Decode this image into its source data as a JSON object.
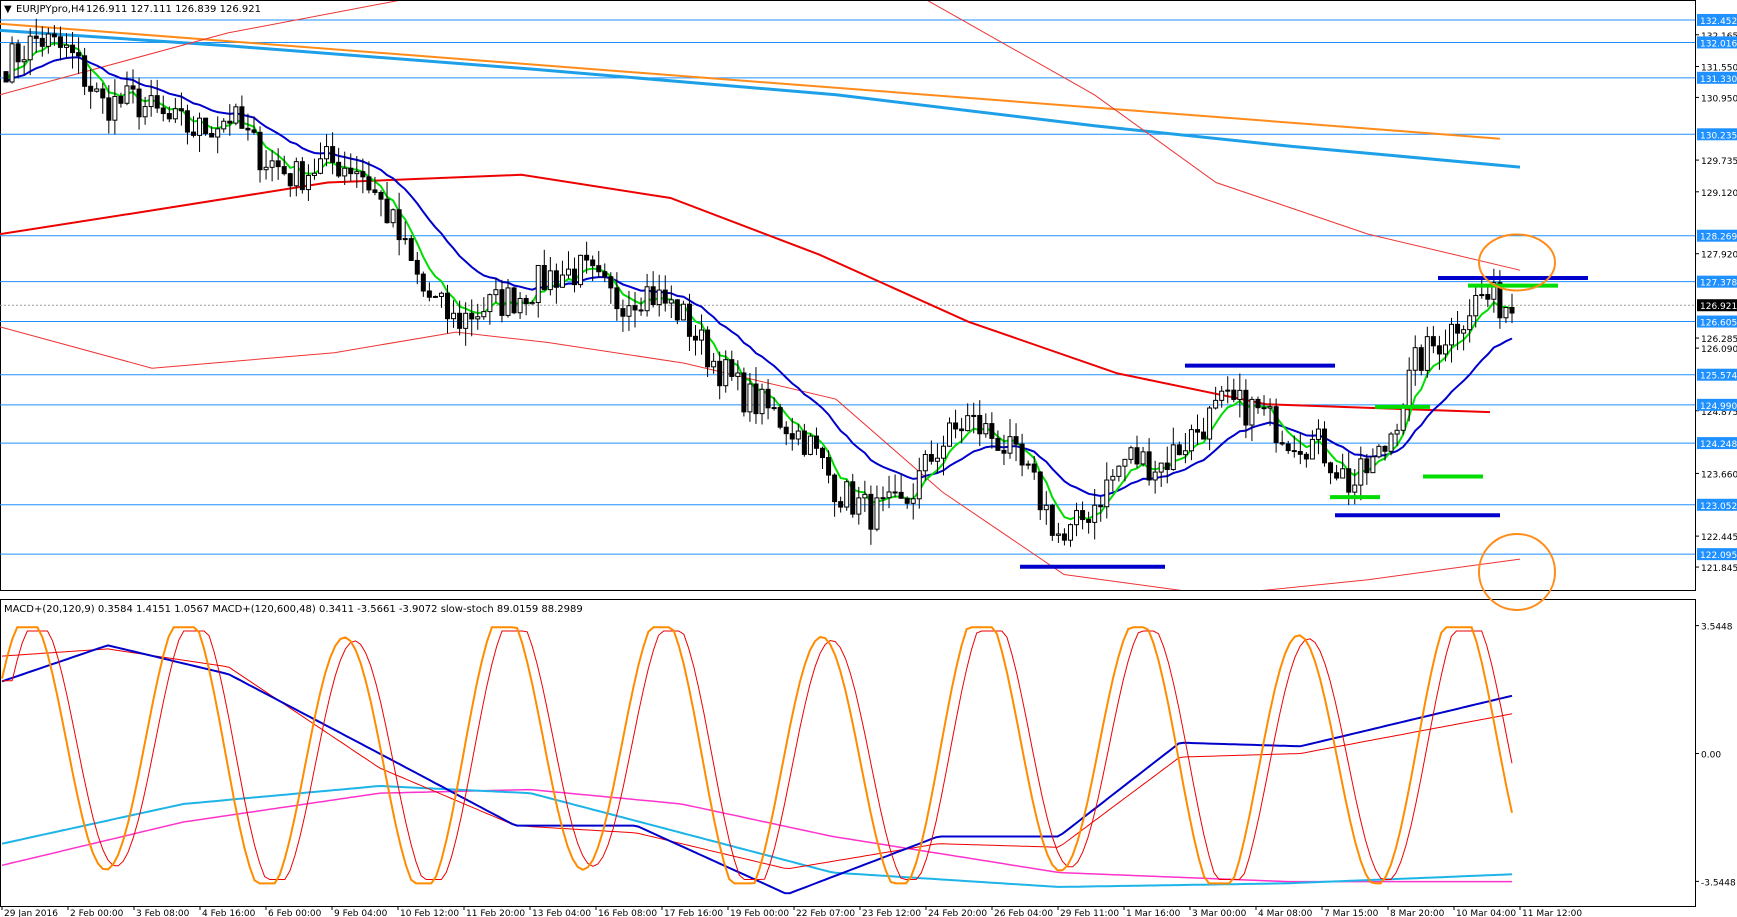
{
  "main_header": {
    "symbol": "EURJPYpro,H4",
    "ohlc": "126.911 127.111 126.839 126.921"
  },
  "sub_header": {
    "text": "MACD+(20,120,9) 0.3584 1.4151 1.0567   MACD+(120,600,48) 0.3411 -3.5661 -3.9072   slow-stoch 89.0159 88.2989"
  },
  "colors": {
    "hline": "#1e90ff",
    "badge": "#1e90ff",
    "ema_fast": "#00dd00",
    "ema_mid": "#0000cc",
    "ema_slow": "#ee0000",
    "envelope": "#ee3333",
    "ma_cyan": "#1ea0e8",
    "ma_orange": "#ff8c1a",
    "stoch_k": "#ff8c00",
    "stoch_d": "#ee0000",
    "macd1": "#0000cc",
    "macd1_sig": "#ee0000",
    "macd2": "#1eb4e8",
    "macd2_sig": "#ff33cc",
    "circle": "#ff8c1a"
  },
  "chart_data": [
    {
      "type": "candlestick",
      "title": "EURJPYpro,H4",
      "ylim": [
        121.4,
        132.8
      ],
      "y_ticks": [
        "132.165",
        "131.550",
        "130.950",
        "129.735",
        "129.120",
        "127.920",
        "126.285",
        "126.090",
        "124.875",
        "123.660",
        "122.445",
        "121.845"
      ],
      "highlighted_levels": [
        "132.452",
        "132.016",
        "131.330",
        "130.235",
        "128.269",
        "127.378",
        "126.921",
        "126.605",
        "125.574",
        "124.990",
        "124.248",
        "123.052",
        "122.095"
      ],
      "current_price": 126.921,
      "x_labels": [
        "29 Jan 2016",
        "2 Feb 00:00",
        "3 Feb 08:00",
        "4 Feb 16:00",
        "6 Feb 00:00",
        "9 Feb 04:00",
        "10 Feb 12:00",
        "11 Feb 20:00",
        "13 Feb 04:00",
        "16 Feb 08:00",
        "17 Feb 16:00",
        "19 Feb 00:00",
        "22 Feb 07:00",
        "23 Feb 12:00",
        "24 Feb 20:00",
        "26 Feb 04:00",
        "29 Feb 11:00",
        "1 Mar 16:00",
        "3 Mar 00:00",
        "4 Mar 08:00",
        "7 Mar 15:00",
        "8 Mar 20:00",
        "10 Mar 04:00",
        "11 Mar 12:00"
      ],
      "price_path": [
        131.6,
        132.1,
        131.8,
        130.8,
        130.9,
        130.5,
        130.3,
        130.6,
        129.8,
        129.4,
        129.7,
        129.6,
        128.6,
        127.2,
        126.6,
        126.9,
        127.1,
        127.5,
        127.6,
        127.0,
        127.2,
        126.8,
        125.9,
        125.2,
        124.8,
        124.3,
        123.3,
        122.9,
        123.0,
        124.1,
        124.7,
        124.3,
        123.5,
        122.3,
        123.1,
        124.0,
        123.8,
        124.4,
        125.0,
        124.9,
        124.4,
        124.2,
        123.4,
        124.1,
        125.8,
        126.4,
        127.1,
        126.9
      ],
      "ma_orange": [
        [
          0,
          132.38
        ],
        [
          1500,
          130.15
        ]
      ],
      "ma_cyan": [
        [
          0,
          132.25
        ],
        [
          0.15,
          131.95
        ],
        [
          0.35,
          131.5
        ],
        [
          0.55,
          131.0
        ],
        [
          0.72,
          130.4
        ],
        [
          0.85,
          130.0
        ],
        [
          1.0,
          129.6
        ]
      ],
      "ema_slow": [
        [
          0,
          128.3
        ],
        [
          0.1,
          128.75
        ],
        [
          0.22,
          129.3
        ],
        [
          0.35,
          129.45
        ],
        [
          0.45,
          129.0
        ],
        [
          0.55,
          127.9
        ],
        [
          0.65,
          126.6
        ],
        [
          0.75,
          125.6
        ],
        [
          0.85,
          125.0
        ],
        [
          1.0,
          124.85
        ]
      ],
      "envelope_upper": [
        [
          0.0,
          131.0
        ],
        [
          0.15,
          132.2
        ],
        [
          0.4,
          133.6
        ],
        [
          0.6,
          133.0
        ],
        [
          0.72,
          131.0
        ],
        [
          0.8,
          129.3
        ],
        [
          0.9,
          128.3
        ],
        [
          1.0,
          127.6
        ]
      ],
      "envelope_lower": [
        [
          0.0,
          126.5
        ],
        [
          0.1,
          125.7
        ],
        [
          0.22,
          126.0
        ],
        [
          0.3,
          126.4
        ],
        [
          0.36,
          126.2
        ],
        [
          0.45,
          125.8
        ],
        [
          0.55,
          125.1
        ],
        [
          0.62,
          123.3
        ],
        [
          0.7,
          121.7
        ],
        [
          0.8,
          121.3
        ],
        [
          0.9,
          121.6
        ],
        [
          1.0,
          122.0
        ]
      ]
    },
    {
      "type": "line",
      "title": "MACD+(20,120,9) / MACD+(120,600,48) / slow-stoch",
      "y_ticks": [
        "3.5448",
        "0.00",
        "-3.5448"
      ],
      "ylim": [
        -4.2,
        4.2
      ]
    }
  ]
}
